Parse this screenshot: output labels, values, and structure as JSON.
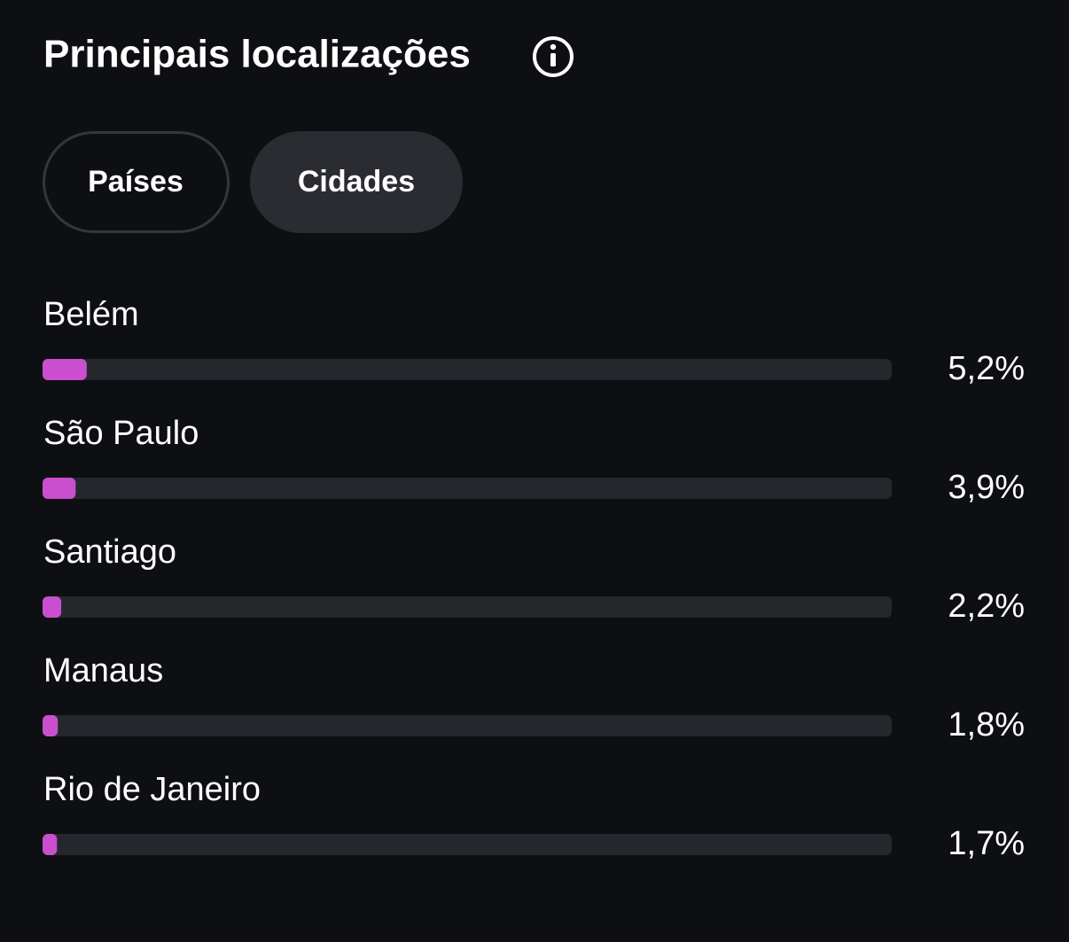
{
  "header": {
    "title": "Principais localizações"
  },
  "tabs": [
    "Países",
    "Cidades"
  ],
  "chart_data": {
    "type": "hbar",
    "categories": [
      "Belém",
      "São Paulo",
      "Santiago",
      "Manaus",
      "Rio de Janeiro"
    ],
    "values": [
      5.2,
      3.9,
      2.2,
      1.8,
      1.7
    ],
    "value_labels": [
      "5,2%",
      "3,9%",
      "2,2%",
      "1,8%",
      "1,7%"
    ],
    "xlim": [
      0,
      100
    ],
    "color": "#c94fce"
  }
}
